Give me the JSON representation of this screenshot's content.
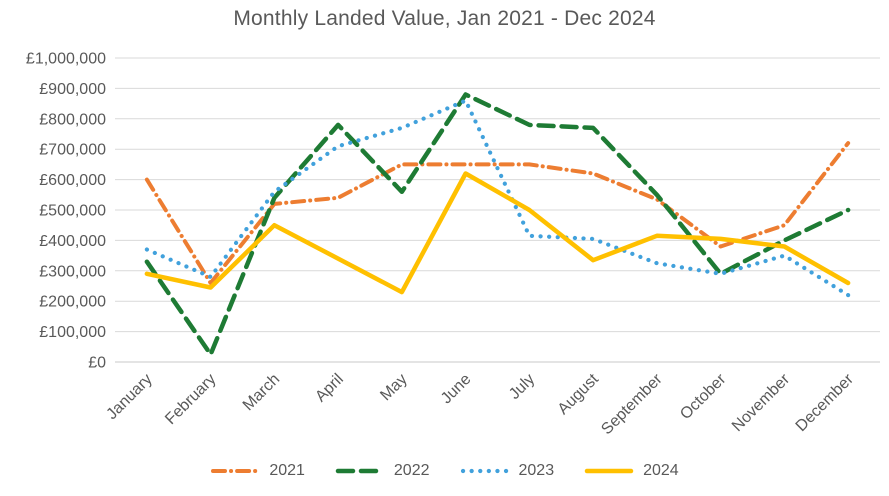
{
  "chart_data": {
    "type": "line",
    "title": "Monthly Landed Value, Jan 2021 - Dec 2024",
    "categories": [
      "January",
      "February",
      "March",
      "April",
      "May",
      "June",
      "July",
      "August",
      "September",
      "October",
      "November",
      "December"
    ],
    "y_axis": {
      "min": 0,
      "max": 1000000,
      "step": 100000,
      "tick_labels_top_to_bottom": [
        "£1,000,000",
        "£900,000",
        "£800,000",
        "£700,000",
        "£600,000",
        "£500,000",
        "£400,000",
        "£300,000",
        "£200,000",
        "£100,000",
        "£0"
      ]
    },
    "grid": true,
    "legend_position": "bottom",
    "series": [
      {
        "name": "2021",
        "color": "#ED7D31",
        "style": "dash-dot",
        "values": [
          600000,
          260000,
          520000,
          540000,
          650000,
          650000,
          650000,
          620000,
          535000,
          380000,
          450000,
          720000
        ]
      },
      {
        "name": "2022",
        "color": "#1E7B34",
        "style": "dashed",
        "values": [
          330000,
          25000,
          540000,
          780000,
          560000,
          880000,
          780000,
          770000,
          550000,
          290000,
          400000,
          500000
        ]
      },
      {
        "name": "2023",
        "color": "#41A1DC",
        "style": "dotted",
        "values": [
          370000,
          280000,
          560000,
          710000,
          770000,
          860000,
          415000,
          405000,
          325000,
          290000,
          350000,
          220000
        ]
      },
      {
        "name": "2024",
        "color": "#FFC000",
        "style": "solid",
        "values": [
          290000,
          245000,
          450000,
          340000,
          230000,
          620000,
          500000,
          335000,
          415000,
          405000,
          380000,
          260000
        ]
      }
    ]
  }
}
